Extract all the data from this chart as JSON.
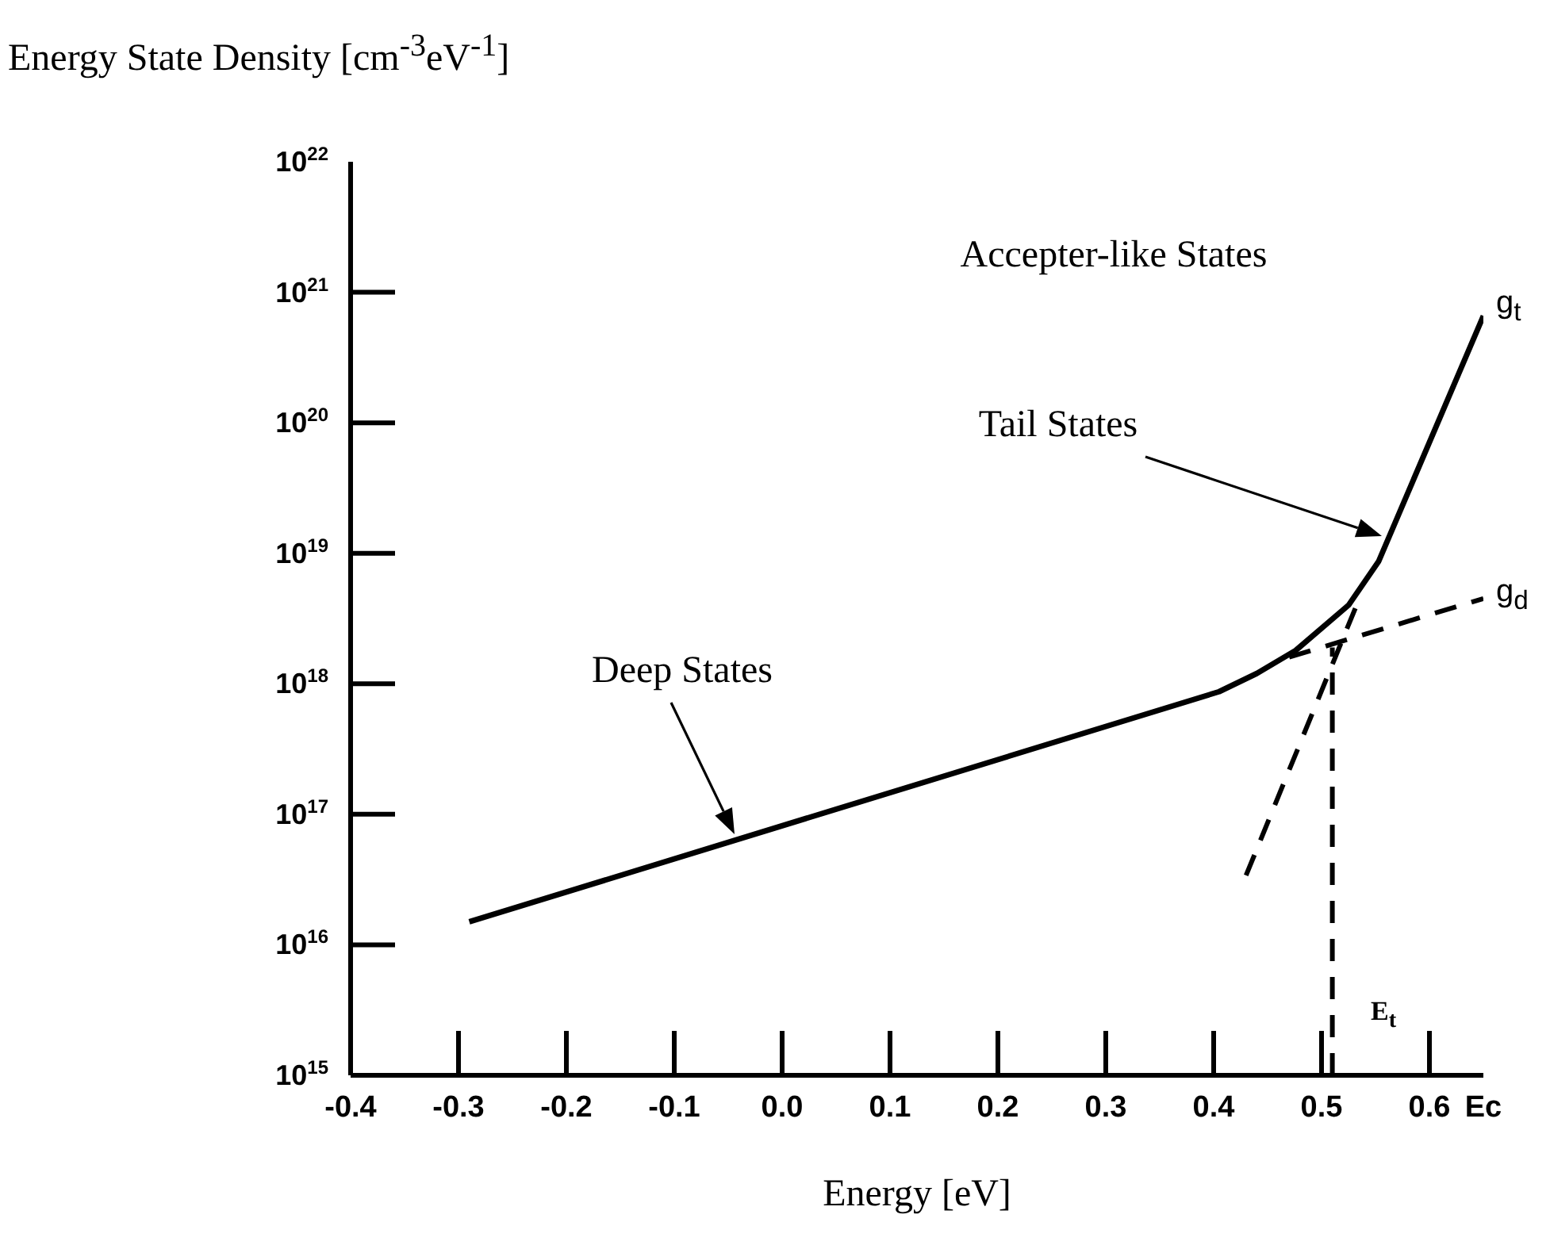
{
  "chart_data": {
    "type": "line",
    "ylabel": "Energy State Density [cm$^{-3}$eV$^{-1}$]",
    "xlabel": "Energy [eV]",
    "series": [
      {
        "color": "#000000",
        "line_style": "solid",
        "x": [
          -0.29,
          0.405,
          0.44,
          0.476,
          0.525,
          0.553,
          0.65
        ],
        "values": [
          1.5e+16,
          8.7e+17,
          1.2e+18,
          1.8e+18,
          4e+18,
          8.7e+18,
          6.6e+20
        ]
      },
      {
        "color": "#000000",
        "line_style": "dashed",
        "x": [
          0.47,
          0.65
        ],
        "values": [
          1.6e+18,
          4.5e+18
        ]
      },
      {
        "color": "#000000",
        "line_style": "dashed",
        "x": [
          0.43,
          0.535
        ],
        "values": [
          3.4e+16,
          4.5e+18
        ]
      },
      {
        "color": "#000000",
        "line_style": "dashed",
        "x": [
          0.51,
          0.51
        ],
        "values": [
          1000000000000000.0,
          1.9e+18
        ]
      }
    ],
    "log": "y",
    "xlim": [
      -0.4,
      0.65
    ],
    "xticks": [
      -0.4,
      -0.3,
      -0.2,
      -0.1,
      {
        "value": 0,
        "label": "0.0"
      },
      0.1,
      0.2,
      0.3,
      0.4,
      0.5,
      0.6,
      {
        "value": 0.65,
        "label": "Ec"
      }
    ],
    "ylim": [
      1000000000000000.0,
      1e+22
    ],
    "yticks": [
      {
        "value": 1000000000000000.0,
        "label": "10$^{15}$"
      },
      {
        "value": 1e+16,
        "label": "10$^{16}$"
      },
      {
        "value": 1e+17,
        "label": "10$^{17}$"
      },
      {
        "value": 1e+18,
        "label": "10$^{18}$"
      },
      {
        "value": 1e+19,
        "label": "10$^{19}$"
      },
      {
        "value": 1e+20,
        "label": "10$^{20}$"
      },
      {
        "value": 1e+21,
        "label": "10$^{21}$"
      },
      {
        "value": 1e+22,
        "label": "10$^{22}$"
      }
    ],
    "marker": "none",
    "annotations": [
      "Accepter-like States",
      "Tail States",
      "Deep States",
      "E$_{t}$",
      "g$_{t}$",
      "g$_{d}$"
    ]
  }
}
